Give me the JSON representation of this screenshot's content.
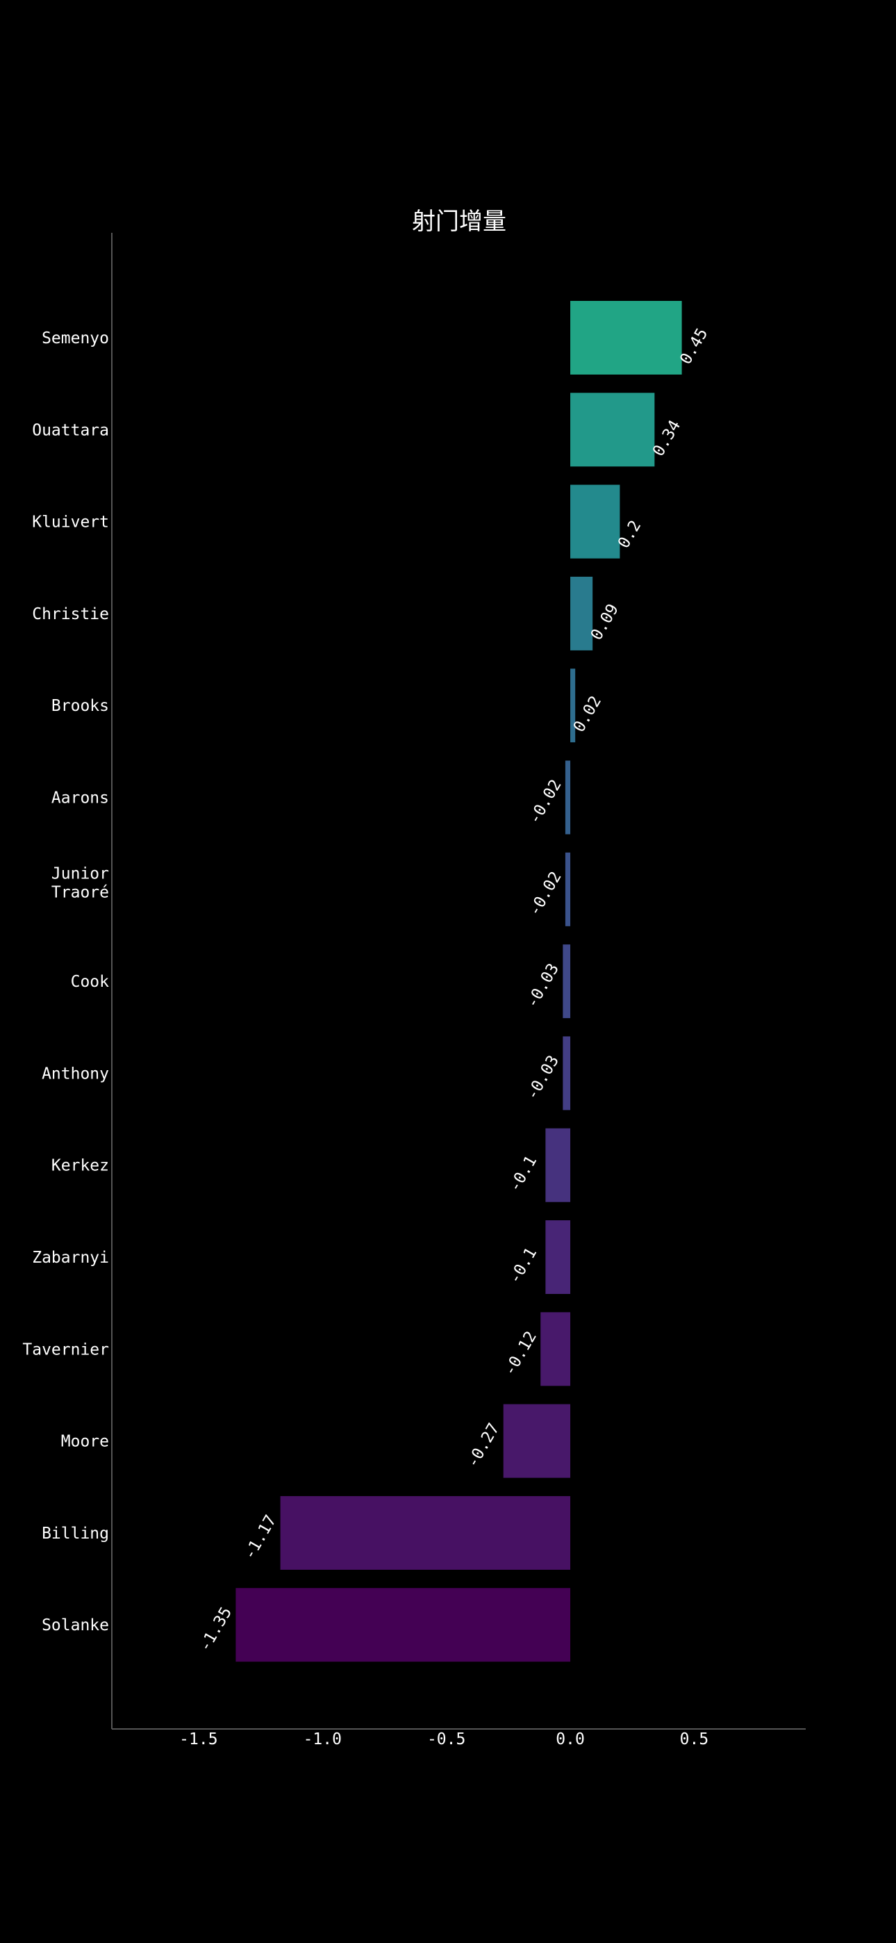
{
  "chart_data": {
    "type": "bar",
    "orientation": "horizontal",
    "title": "射门增量",
    "xlabel": "",
    "ylabel": "",
    "categories": [
      "Semenyo",
      "Ouattara",
      "Kluivert",
      "Christie",
      "Brooks",
      "Aarons",
      "Junior Traoré",
      "Cook",
      "Anthony",
      "Kerkez",
      "Zabarnyi",
      "Tavernier",
      "Moore",
      "Billing",
      "Solanke"
    ],
    "values": [
      0.45,
      0.34,
      0.2,
      0.09,
      0.02,
      -0.02,
      -0.02,
      -0.03,
      -0.03,
      -0.1,
      -0.1,
      -0.12,
      -0.27,
      -1.17,
      -1.35
    ],
    "value_labels": [
      "0.45",
      "0.34",
      "0.2",
      "0.09",
      "0.02",
      "-0.02",
      "-0.02",
      "-0.03",
      "-0.03",
      "-0.1",
      "-0.1",
      "-0.12",
      "-0.27",
      "-1.17",
      "-1.35"
    ],
    "xlim": [
      -1.85,
      0.95
    ],
    "xticks": [
      -1.5,
      -1.0,
      -0.5,
      0.0,
      0.5
    ],
    "xtick_labels": [
      "-1.5",
      "-1.0",
      "-0.5",
      "0.0",
      "0.5"
    ],
    "colors": [
      "#21a585",
      "#22998a",
      "#238a8d",
      "#297b8e",
      "#2e6d8e",
      "#34608d",
      "#3a528b",
      "#3f4889",
      "#433e85",
      "#46327e",
      "#482576",
      "#48196b",
      "#48186a",
      "#471163",
      "#440154"
    ],
    "grid": false,
    "legend": "none"
  }
}
